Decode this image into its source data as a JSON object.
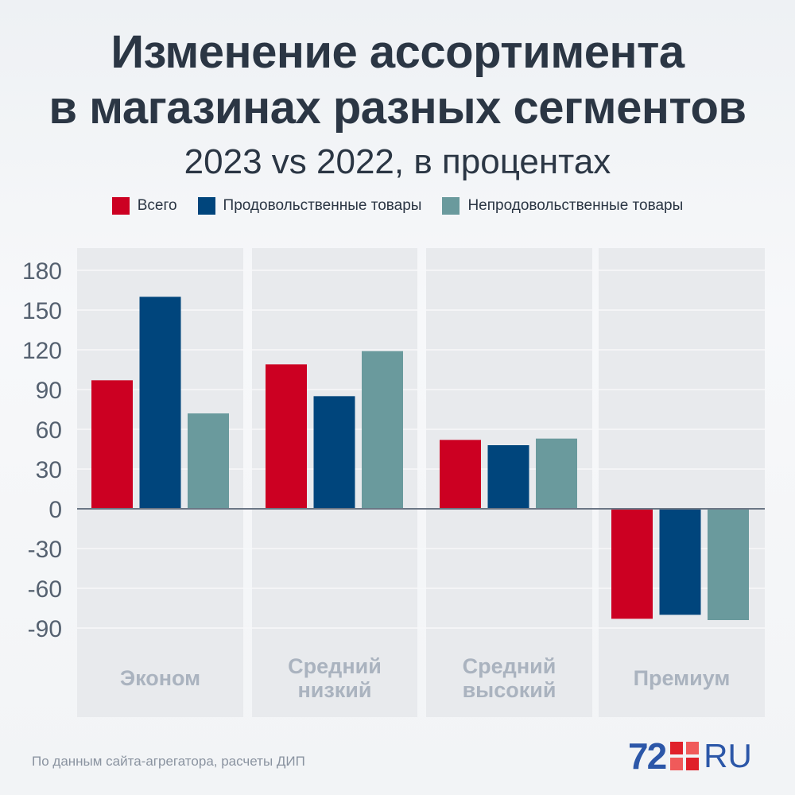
{
  "title_line1": "Изменение ассортимента",
  "title_line2": "в магазинах разных сегментов",
  "subtitle": "2023 vs 2022, в процентах",
  "source": "По данным сайта-агрегатора, расчеты ДИП",
  "logo": {
    "number": "72",
    "suffix": "RU"
  },
  "colors": {
    "total": "#cc0022",
    "food": "#00457c",
    "nonfood": "#6a9a9d"
  },
  "chart_data": {
    "type": "bar",
    "title": "Изменение ассортимента в магазинах разных сегментов",
    "subtitle": "2023 vs 2022, в процентах",
    "categories": [
      [
        "Эконом"
      ],
      [
        "Средний",
        "низкий"
      ],
      [
        "Средний",
        "высокий"
      ],
      [
        "Премиум"
      ]
    ],
    "series": [
      {
        "name": "Всего",
        "color": "#cc0022",
        "values": [
          97,
          109,
          52,
          -83
        ]
      },
      {
        "name": "Продовольственные товары",
        "color": "#00457c",
        "values": [
          160,
          85,
          48,
          -80
        ]
      },
      {
        "name": "Непродовольственные товары",
        "color": "#6a9a9d",
        "values": [
          72,
          119,
          53,
          -84
        ]
      }
    ],
    "yticks": [
      180,
      150,
      120,
      90,
      60,
      30,
      0,
      -30,
      -60,
      -90
    ],
    "ylim": [
      -90,
      180
    ],
    "legend_position": "top-center",
    "grid": true
  }
}
